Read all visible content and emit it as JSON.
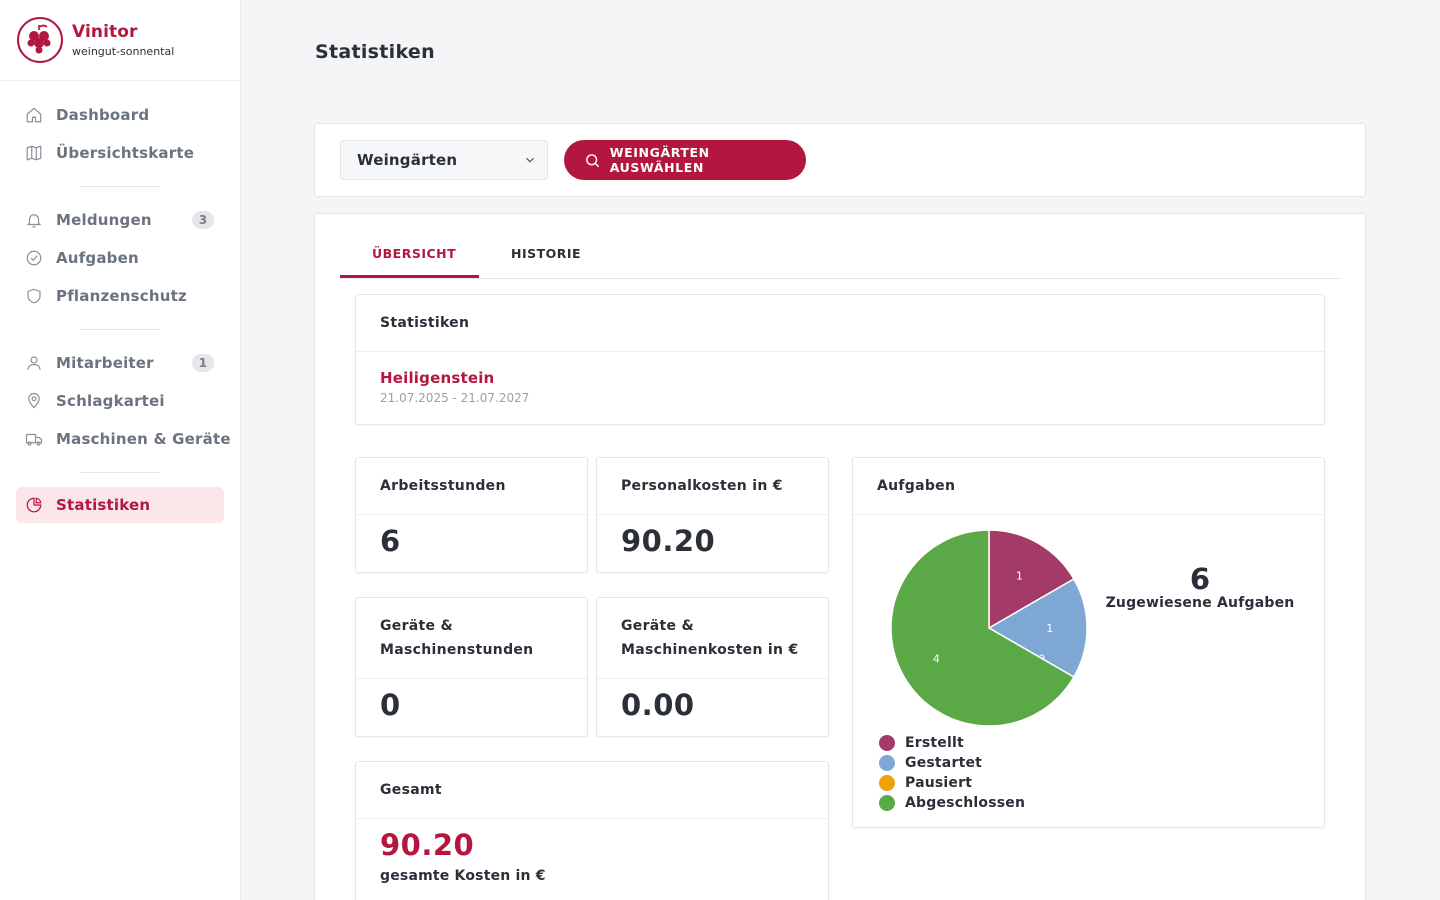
{
  "brand": {
    "name": "Vinitor",
    "subtitle": "weingut-sonnental"
  },
  "sidebar": {
    "items": [
      {
        "label": "Dashboard",
        "icon": "home-icon"
      },
      {
        "label": "Übersichtskarte",
        "icon": "map-icon"
      },
      {
        "label": "Meldungen",
        "icon": "bell-icon",
        "badge": "3"
      },
      {
        "label": "Aufgaben",
        "icon": "check-circle-icon"
      },
      {
        "label": "Pflanzenschutz",
        "icon": "shield-icon"
      },
      {
        "label": "Mitarbeiter",
        "icon": "user-icon",
        "badge": "1"
      },
      {
        "label": "Schlagkartei",
        "icon": "map-pin-icon"
      },
      {
        "label": "Maschinen & Geräte",
        "icon": "truck-icon"
      },
      {
        "label": "Statistiken",
        "icon": "pie-chart-icon",
        "active": true
      }
    ]
  },
  "header": {
    "title": "Statistiken"
  },
  "filter": {
    "select_value": "Weingärten",
    "button_label": "WEINGÄRTEN AUSWÄHLEN"
  },
  "tabs": [
    {
      "label": "ÜBERSICHT",
      "active": true
    },
    {
      "label": "HISTORIE",
      "active": false
    }
  ],
  "statistics_panel": {
    "title": "Statistiken",
    "vineyard": "Heiligenstein",
    "dates": "21.07.2025 - 21.07.2027"
  },
  "stats": {
    "work_hours": {
      "label": "Arbeitsstunden",
      "value": "6"
    },
    "personnel_costs": {
      "label": "Personalkosten in €",
      "value": "90.20"
    },
    "machine_hours": {
      "label": "Geräte & Maschinenstunden",
      "value": "0"
    },
    "machine_costs": {
      "label": "Geräte & Maschinenkosten in €",
      "value": "0.00"
    },
    "total": {
      "label": "Gesamt",
      "value": "90.20",
      "caption": "gesamte Kosten in €"
    }
  },
  "tasks": {
    "title": "Aufgaben",
    "total": "6",
    "total_label": "Zugewiesene Aufgaben"
  },
  "colors": {
    "accent": "#b3173f",
    "erstellt": "#a33a67",
    "gestartet": "#7ea7d3",
    "pausiert": "#f0a20c",
    "abgeschlossen": "#5ba846"
  },
  "chart_data": {
    "type": "pie",
    "labels": [
      "Erstellt",
      "Gestartet",
      "Pausiert",
      "Abgeschlossen"
    ],
    "values": [
      1,
      1,
      0,
      4
    ],
    "colors": [
      "#a33a67",
      "#7ea7d3",
      "#f0a20c",
      "#5ba846"
    ],
    "legend": "bottom-left"
  }
}
